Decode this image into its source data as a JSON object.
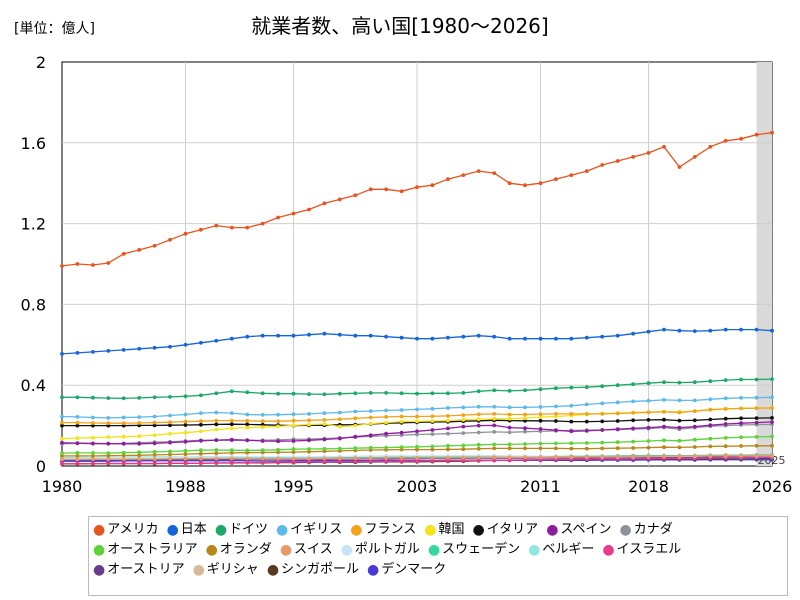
{
  "unit": "[単位：億人]",
  "title": "就業者数、高い国[1980～2026]",
  "forecast_label": "2025",
  "chart_data": {
    "type": "line",
    "title": "就業者数、高い国[1980～2026]",
    "ylabel": "[単位：億人]",
    "xlim": [
      1980,
      2026
    ],
    "ylim": [
      0,
      2
    ],
    "x_ticks": [
      1980,
      1988,
      1995,
      2003,
      2011,
      2018,
      2026
    ],
    "y_ticks": [
      0,
      0.4,
      0.8,
      1.2,
      1.6,
      2
    ],
    "grid": true,
    "legend_position": "bottom",
    "forecast_region": [
      2025,
      2026
    ],
    "x": [
      1980,
      1981,
      1982,
      1983,
      1984,
      1985,
      1986,
      1987,
      1988,
      1989,
      1990,
      1991,
      1992,
      1993,
      1994,
      1995,
      1996,
      1997,
      1998,
      1999,
      2000,
      2001,
      2002,
      2003,
      2004,
      2005,
      2006,
      2007,
      2008,
      2009,
      2010,
      2011,
      2012,
      2013,
      2014,
      2015,
      2016,
      2017,
      2018,
      2019,
      2020,
      2021,
      2022,
      2023,
      2024,
      2025,
      2026
    ],
    "series": [
      {
        "name": "アメリカ",
        "color": "#e8541f",
        "values": [
          0.99,
          1.0,
          0.995,
          1.005,
          1.05,
          1.07,
          1.09,
          1.12,
          1.15,
          1.17,
          1.19,
          1.18,
          1.18,
          1.2,
          1.23,
          1.25,
          1.27,
          1.3,
          1.32,
          1.34,
          1.37,
          1.37,
          1.36,
          1.38,
          1.39,
          1.42,
          1.44,
          1.46,
          1.45,
          1.4,
          1.39,
          1.4,
          1.42,
          1.44,
          1.46,
          1.49,
          1.51,
          1.53,
          1.55,
          1.58,
          1.48,
          1.53,
          1.58,
          1.61,
          1.62,
          1.64,
          1.65
        ]
      },
      {
        "name": "日本",
        "color": "#1565d8",
        "values": [
          0.555,
          0.56,
          0.565,
          0.57,
          0.575,
          0.58,
          0.585,
          0.59,
          0.6,
          0.61,
          0.62,
          0.63,
          0.64,
          0.645,
          0.645,
          0.645,
          0.65,
          0.655,
          0.65,
          0.645,
          0.645,
          0.64,
          0.635,
          0.63,
          0.63,
          0.635,
          0.64,
          0.645,
          0.64,
          0.63,
          0.63,
          0.63,
          0.63,
          0.63,
          0.635,
          0.64,
          0.645,
          0.655,
          0.665,
          0.675,
          0.67,
          0.668,
          0.67,
          0.675,
          0.675,
          0.675,
          0.67
        ]
      },
      {
        "name": "ドイツ",
        "color": "#1da868",
        "values": [
          0.34,
          0.34,
          0.338,
          0.336,
          0.335,
          0.337,
          0.34,
          0.342,
          0.345,
          0.35,
          0.36,
          0.37,
          0.365,
          0.36,
          0.358,
          0.358,
          0.356,
          0.355,
          0.358,
          0.36,
          0.362,
          0.362,
          0.36,
          0.358,
          0.36,
          0.36,
          0.362,
          0.37,
          0.375,
          0.372,
          0.375,
          0.38,
          0.385,
          0.388,
          0.39,
          0.395,
          0.4,
          0.405,
          0.41,
          0.415,
          0.413,
          0.415,
          0.42,
          0.425,
          0.428,
          0.428,
          0.43
        ]
      },
      {
        "name": "イギリス",
        "color": "#5db8ec",
        "values": [
          0.245,
          0.243,
          0.24,
          0.238,
          0.24,
          0.242,
          0.245,
          0.25,
          0.255,
          0.262,
          0.265,
          0.262,
          0.255,
          0.253,
          0.254,
          0.256,
          0.258,
          0.262,
          0.265,
          0.27,
          0.272,
          0.275,
          0.277,
          0.28,
          0.283,
          0.287,
          0.29,
          0.293,
          0.293,
          0.29,
          0.29,
          0.292,
          0.295,
          0.298,
          0.305,
          0.31,
          0.315,
          0.32,
          0.323,
          0.327,
          0.325,
          0.325,
          0.33,
          0.335,
          0.337,
          0.338,
          0.34
        ]
      },
      {
        "name": "フランス",
        "color": "#f2a31a",
        "values": [
          0.215,
          0.215,
          0.213,
          0.212,
          0.212,
          0.213,
          0.215,
          0.217,
          0.22,
          0.222,
          0.225,
          0.225,
          0.224,
          0.222,
          0.222,
          0.224,
          0.226,
          0.228,
          0.231,
          0.236,
          0.24,
          0.243,
          0.245,
          0.245,
          0.246,
          0.248,
          0.252,
          0.256,
          0.258,
          0.255,
          0.255,
          0.257,
          0.258,
          0.258,
          0.258,
          0.258,
          0.26,
          0.263,
          0.266,
          0.268,
          0.265,
          0.272,
          0.278,
          0.282,
          0.285,
          0.286,
          0.287
        ]
      },
      {
        "name": "韓国",
        "color": "#f5e21a",
        "values": [
          0.135,
          0.138,
          0.14,
          0.143,
          0.145,
          0.148,
          0.153,
          0.16,
          0.165,
          0.172,
          0.18,
          0.186,
          0.19,
          0.192,
          0.196,
          0.201,
          0.205,
          0.208,
          0.195,
          0.2,
          0.21,
          0.215,
          0.22,
          0.221,
          0.223,
          0.225,
          0.228,
          0.231,
          0.234,
          0.234,
          0.237,
          0.242,
          0.245,
          0.25,
          0.255,
          0.26,
          0.262,
          0.265,
          0.267,
          0.27,
          0.268,
          0.272,
          0.28,
          0.283,
          0.285,
          0.287,
          0.288
        ]
      },
      {
        "name": "イタリア",
        "color": "#111111",
        "values": [
          0.2,
          0.2,
          0.2,
          0.2,
          0.2,
          0.201,
          0.201,
          0.202,
          0.203,
          0.204,
          0.206,
          0.207,
          0.206,
          0.204,
          0.202,
          0.2,
          0.201,
          0.202,
          0.204,
          0.205,
          0.208,
          0.212,
          0.214,
          0.216,
          0.218,
          0.219,
          0.222,
          0.224,
          0.226,
          0.225,
          0.224,
          0.224,
          0.223,
          0.22,
          0.22,
          0.221,
          0.223,
          0.226,
          0.228,
          0.229,
          0.225,
          0.226,
          0.23,
          0.234,
          0.236,
          0.237,
          0.238
        ]
      },
      {
        "name": "スペイン",
        "color": "#8e1d9e",
        "values": [
          0.115,
          0.113,
          0.112,
          0.111,
          0.11,
          0.11,
          0.112,
          0.116,
          0.12,
          0.125,
          0.128,
          0.13,
          0.128,
          0.124,
          0.123,
          0.124,
          0.127,
          0.131,
          0.136,
          0.145,
          0.152,
          0.16,
          0.165,
          0.172,
          0.178,
          0.186,
          0.195,
          0.2,
          0.201,
          0.19,
          0.187,
          0.183,
          0.177,
          0.172,
          0.174,
          0.178,
          0.182,
          0.186,
          0.19,
          0.195,
          0.19,
          0.195,
          0.202,
          0.208,
          0.212,
          0.215,
          0.218
        ]
      },
      {
        "name": "カナダ",
        "color": "#8d929a",
        "values": [
          0.11,
          0.112,
          0.11,
          0.11,
          0.112,
          0.115,
          0.118,
          0.12,
          0.124,
          0.127,
          0.128,
          0.127,
          0.126,
          0.127,
          0.129,
          0.132,
          0.133,
          0.136,
          0.139,
          0.143,
          0.147,
          0.15,
          0.153,
          0.156,
          0.158,
          0.16,
          0.163,
          0.166,
          0.169,
          0.167,
          0.17,
          0.172,
          0.174,
          0.176,
          0.177,
          0.178,
          0.18,
          0.183,
          0.185,
          0.19,
          0.182,
          0.19,
          0.197,
          0.2,
          0.203,
          0.205,
          0.206
        ]
      },
      {
        "name": "オーストラリア",
        "color": "#5cd33a",
        "values": [
          0.064,
          0.065,
          0.065,
          0.064,
          0.066,
          0.068,
          0.07,
          0.072,
          0.075,
          0.078,
          0.079,
          0.078,
          0.077,
          0.078,
          0.08,
          0.083,
          0.084,
          0.085,
          0.086,
          0.088,
          0.09,
          0.091,
          0.093,
          0.095,
          0.097,
          0.1,
          0.102,
          0.105,
          0.107,
          0.107,
          0.109,
          0.111,
          0.112,
          0.113,
          0.114,
          0.116,
          0.118,
          0.121,
          0.124,
          0.127,
          0.125,
          0.13,
          0.135,
          0.139,
          0.142,
          0.144,
          0.146
        ]
      },
      {
        "name": "オランダ",
        "color": "#b8861b",
        "values": [
          0.05,
          0.05,
          0.05,
          0.051,
          0.052,
          0.053,
          0.055,
          0.057,
          0.059,
          0.061,
          0.063,
          0.065,
          0.066,
          0.067,
          0.068,
          0.069,
          0.071,
          0.073,
          0.075,
          0.077,
          0.079,
          0.08,
          0.081,
          0.081,
          0.081,
          0.082,
          0.083,
          0.085,
          0.087,
          0.087,
          0.087,
          0.087,
          0.087,
          0.086,
          0.086,
          0.087,
          0.088,
          0.089,
          0.091,
          0.093,
          0.092,
          0.094,
          0.097,
          0.098,
          0.099,
          0.1,
          0.1
        ]
      },
      {
        "name": "スイス",
        "color": "#e49a6a",
        "values": [
          0.032,
          0.032,
          0.033,
          0.033,
          0.033,
          0.034,
          0.034,
          0.035,
          0.036,
          0.036,
          0.037,
          0.037,
          0.037,
          0.037,
          0.037,
          0.037,
          0.037,
          0.038,
          0.038,
          0.039,
          0.039,
          0.04,
          0.04,
          0.04,
          0.04,
          0.041,
          0.041,
          0.042,
          0.043,
          0.043,
          0.044,
          0.044,
          0.045,
          0.046,
          0.046,
          0.047,
          0.047,
          0.048,
          0.048,
          0.049,
          0.049,
          0.05,
          0.05,
          0.051,
          0.051,
          0.052,
          0.052
        ]
      },
      {
        "name": "ポルトガル",
        "color": "#c7e3f5",
        "values": [
          0.04,
          0.04,
          0.041,
          0.041,
          0.041,
          0.041,
          0.041,
          0.042,
          0.043,
          0.044,
          0.045,
          0.046,
          0.045,
          0.045,
          0.045,
          0.045,
          0.045,
          0.046,
          0.047,
          0.048,
          0.049,
          0.05,
          0.05,
          0.05,
          0.05,
          0.05,
          0.051,
          0.051,
          0.051,
          0.05,
          0.049,
          0.048,
          0.046,
          0.045,
          0.045,
          0.046,
          0.046,
          0.047,
          0.048,
          0.049,
          0.048,
          0.049,
          0.05,
          0.05,
          0.051,
          0.051,
          0.051
        ]
      },
      {
        "name": "スウェーデン",
        "color": "#33d89a",
        "values": [
          0.042,
          0.042,
          0.042,
          0.042,
          0.042,
          0.043,
          0.043,
          0.044,
          0.044,
          0.045,
          0.045,
          0.044,
          0.042,
          0.04,
          0.04,
          0.04,
          0.04,
          0.04,
          0.041,
          0.041,
          0.042,
          0.043,
          0.043,
          0.043,
          0.043,
          0.044,
          0.045,
          0.046,
          0.046,
          0.045,
          0.046,
          0.047,
          0.047,
          0.048,
          0.048,
          0.049,
          0.05,
          0.051,
          0.052,
          0.052,
          0.051,
          0.052,
          0.053,
          0.054,
          0.054,
          0.055,
          0.055
        ]
      },
      {
        "name": "ベルギー",
        "color": "#8fe8e0",
        "values": [
          0.036,
          0.036,
          0.035,
          0.035,
          0.035,
          0.035,
          0.035,
          0.036,
          0.036,
          0.037,
          0.037,
          0.037,
          0.037,
          0.037,
          0.037,
          0.037,
          0.037,
          0.038,
          0.038,
          0.039,
          0.04,
          0.04,
          0.04,
          0.04,
          0.041,
          0.041,
          0.042,
          0.043,
          0.043,
          0.043,
          0.044,
          0.044,
          0.044,
          0.044,
          0.045,
          0.045,
          0.045,
          0.046,
          0.047,
          0.048,
          0.048,
          0.049,
          0.05,
          0.05,
          0.051,
          0.051,
          0.051
        ]
      },
      {
        "name": "イスラエル",
        "color": "#e83b8e",
        "values": [
          0.012,
          0.012,
          0.012,
          0.013,
          0.013,
          0.013,
          0.013,
          0.014,
          0.014,
          0.014,
          0.015,
          0.016,
          0.017,
          0.018,
          0.019,
          0.02,
          0.021,
          0.021,
          0.022,
          0.022,
          0.023,
          0.023,
          0.024,
          0.024,
          0.025,
          0.026,
          0.027,
          0.028,
          0.028,
          0.029,
          0.03,
          0.031,
          0.032,
          0.033,
          0.034,
          0.035,
          0.036,
          0.037,
          0.037,
          0.038,
          0.038,
          0.039,
          0.04,
          0.041,
          0.042,
          0.043,
          0.043
        ]
      },
      {
        "name": "オーストリア",
        "color": "#6a3c8c",
        "values": [
          0.03,
          0.03,
          0.03,
          0.03,
          0.03,
          0.031,
          0.031,
          0.031,
          0.032,
          0.032,
          0.033,
          0.033,
          0.034,
          0.034,
          0.034,
          0.034,
          0.034,
          0.034,
          0.035,
          0.035,
          0.036,
          0.036,
          0.036,
          0.036,
          0.037,
          0.037,
          0.038,
          0.039,
          0.039,
          0.039,
          0.039,
          0.04,
          0.04,
          0.04,
          0.041,
          0.041,
          0.042,
          0.043,
          0.043,
          0.044,
          0.043,
          0.044,
          0.045,
          0.045,
          0.045,
          0.046,
          0.046
        ]
      },
      {
        "name": "ギリシャ",
        "color": "#d8b89a",
        "values": [
          0.036,
          0.036,
          0.036,
          0.037,
          0.037,
          0.037,
          0.037,
          0.037,
          0.038,
          0.038,
          0.038,
          0.038,
          0.038,
          0.039,
          0.039,
          0.039,
          0.039,
          0.039,
          0.04,
          0.041,
          0.041,
          0.041,
          0.042,
          0.043,
          0.043,
          0.044,
          0.044,
          0.045,
          0.045,
          0.044,
          0.043,
          0.041,
          0.038,
          0.036,
          0.036,
          0.036,
          0.036,
          0.037,
          0.038,
          0.039,
          0.038,
          0.039,
          0.04,
          0.041,
          0.041,
          0.042,
          0.042
        ]
      },
      {
        "name": "シンガポール",
        "color": "#5a3a22",
        "values": [
          0.011,
          0.011,
          0.012,
          0.012,
          0.012,
          0.012,
          0.012,
          0.013,
          0.013,
          0.014,
          0.015,
          0.015,
          0.016,
          0.016,
          0.017,
          0.017,
          0.018,
          0.019,
          0.019,
          0.019,
          0.02,
          0.021,
          0.021,
          0.021,
          0.022,
          0.023,
          0.024,
          0.026,
          0.027,
          0.028,
          0.029,
          0.03,
          0.031,
          0.032,
          0.033,
          0.034,
          0.034,
          0.035,
          0.035,
          0.036,
          0.035,
          0.035,
          0.036,
          0.037,
          0.037,
          0.038,
          0.038
        ]
      },
      {
        "name": "デンマーク",
        "color": "#4a3ad8",
        "values": [
          0.024,
          0.024,
          0.024,
          0.024,
          0.025,
          0.025,
          0.026,
          0.026,
          0.026,
          0.026,
          0.026,
          0.026,
          0.026,
          0.025,
          0.025,
          0.026,
          0.026,
          0.027,
          0.027,
          0.027,
          0.027,
          0.028,
          0.027,
          0.027,
          0.027,
          0.028,
          0.028,
          0.029,
          0.029,
          0.028,
          0.028,
          0.028,
          0.028,
          0.028,
          0.028,
          0.029,
          0.029,
          0.029,
          0.03,
          0.03,
          0.03,
          0.03,
          0.031,
          0.031,
          0.031,
          0.031,
          0.031
        ]
      }
    ]
  }
}
